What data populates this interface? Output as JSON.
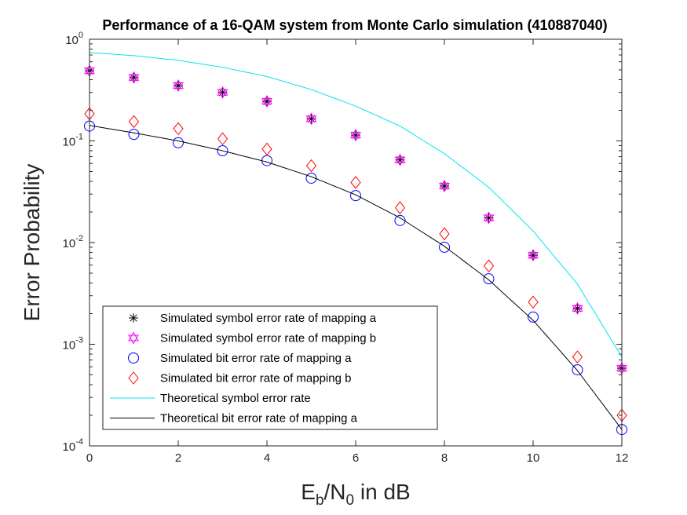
{
  "chart_data": {
    "type": "scatter",
    "title": "Performance of a 16-QAM system from Monte Carlo simulation (410887040)",
    "xlabel": {
      "main": "E",
      "sub1": "b",
      "mid": "/N",
      "sub2": "0",
      "tail": " in dB"
    },
    "ylabel": "Error Probability",
    "xlim": [
      0,
      12
    ],
    "ylim": [
      0.0001,
      1
    ],
    "yscale": "log",
    "grid": false,
    "legend_position": "bottom-left",
    "x_ticks": [
      "0",
      "2",
      "4",
      "6",
      "8",
      "10",
      "12"
    ],
    "y_ticks": [
      {
        "base": "10",
        "exp": "0"
      },
      {
        "base": "10",
        "exp": "-1"
      },
      {
        "base": "10",
        "exp": "-2"
      },
      {
        "base": "10",
        "exp": "-3"
      },
      {
        "base": "10",
        "exp": "-4"
      }
    ],
    "x": [
      0,
      1,
      2,
      3,
      4,
      5,
      6,
      7,
      8,
      9,
      10,
      11,
      12
    ],
    "series": [
      {
        "name": "Simulated symbol error rate of mapping a",
        "marker": "asterisk",
        "color": "#000000",
        "values": [
          0.49,
          0.42,
          0.35,
          0.3,
          0.245,
          0.165,
          0.114,
          0.065,
          0.036,
          0.0175,
          0.0075,
          0.00225,
          0.00058
        ]
      },
      {
        "name": "Simulated symbol error rate of mapping b",
        "marker": "hexagram",
        "color": "#ff00ff",
        "values": [
          0.49,
          0.42,
          0.35,
          0.3,
          0.245,
          0.165,
          0.114,
          0.065,
          0.036,
          0.0175,
          0.0075,
          0.00225,
          0.00058
        ]
      },
      {
        "name": "Simulated bit error rate of mapping a",
        "marker": "circle",
        "color": "#0000ff",
        "values": [
          0.14,
          0.116,
          0.096,
          0.08,
          0.064,
          0.043,
          0.029,
          0.0165,
          0.009,
          0.0044,
          0.00185,
          0.00056,
          0.000145
        ]
      },
      {
        "name": "Simulated bit error rate of mapping b",
        "marker": "diamond",
        "color": "#ff0000",
        "values": [
          0.185,
          0.155,
          0.132,
          0.105,
          0.083,
          0.057,
          0.039,
          0.022,
          0.0122,
          0.0059,
          0.0026,
          0.00075,
          0.0002
        ]
      },
      {
        "name": "Theoretical symbol error rate",
        "marker": "line",
        "color": "#00e5ee",
        "values": [
          0.74,
          0.69,
          0.62,
          0.53,
          0.43,
          0.32,
          0.22,
          0.14,
          0.075,
          0.035,
          0.013,
          0.0039,
          0.00075
        ]
      },
      {
        "name": "Theoretical bit error rate of mapping a",
        "marker": "line",
        "color": "#000000",
        "values": [
          0.142,
          0.12,
          0.1,
          0.08,
          0.062,
          0.0445,
          0.0295,
          0.0175,
          0.0092,
          0.0043,
          0.00172,
          0.00055,
          0.000145
        ]
      }
    ]
  }
}
